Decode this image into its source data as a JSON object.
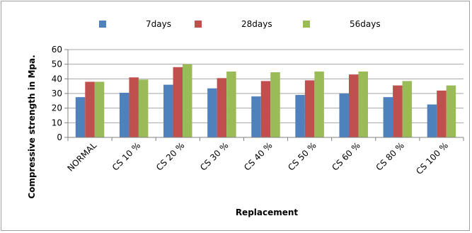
{
  "chart_data": {
    "type": "bar",
    "title": "",
    "xlabel": "Replacement",
    "ylabel": "Compressive strength in Mpa.",
    "ylim": [
      0,
      60
    ],
    "yticks": [
      0,
      10,
      20,
      30,
      40,
      50,
      60
    ],
    "grid": true,
    "legend_position": "top",
    "categories": [
      "NORMAL",
      "CS 10 %",
      "CS 20 %",
      "CS 30 %",
      "CS 40 %",
      "CS 50 %",
      "CS 60 %",
      "CS 80 %",
      "CS 100 %"
    ],
    "series": [
      {
        "name": "7days",
        "color": "#4f81bd",
        "values": [
          27.5,
          30.5,
          36,
          33.5,
          28,
          29,
          30,
          27.5,
          22.5
        ]
      },
      {
        "name": "28days",
        "color": "#c0504d",
        "values": [
          38,
          41,
          48,
          40.5,
          38.5,
          39,
          43,
          35.5,
          32
        ]
      },
      {
        "name": "56days",
        "color": "#9bbb59",
        "values": [
          38,
          39.5,
          50,
          45,
          44.5,
          45,
          45,
          38.5,
          35.5
        ]
      }
    ]
  }
}
